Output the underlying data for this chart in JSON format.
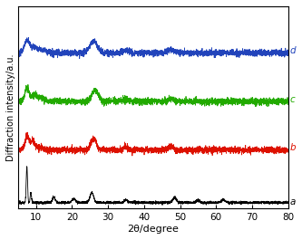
{
  "xlabel": "2θ/degree",
  "ylabel": "Diffraction intensity/a.u.",
  "xlim": [
    5,
    80
  ],
  "xticks": [
    10,
    20,
    30,
    40,
    50,
    60,
    70,
    80
  ],
  "colors": {
    "a": "#000000",
    "b": "#dd1100",
    "c": "#22aa00",
    "d": "#2244bb"
  },
  "labels": [
    "a",
    "b",
    "c",
    "d"
  ],
  "offsets": [
    0.0,
    0.26,
    0.5,
    0.74
  ],
  "noise_amplitude": 0.008,
  "background_color": "#ffffff"
}
